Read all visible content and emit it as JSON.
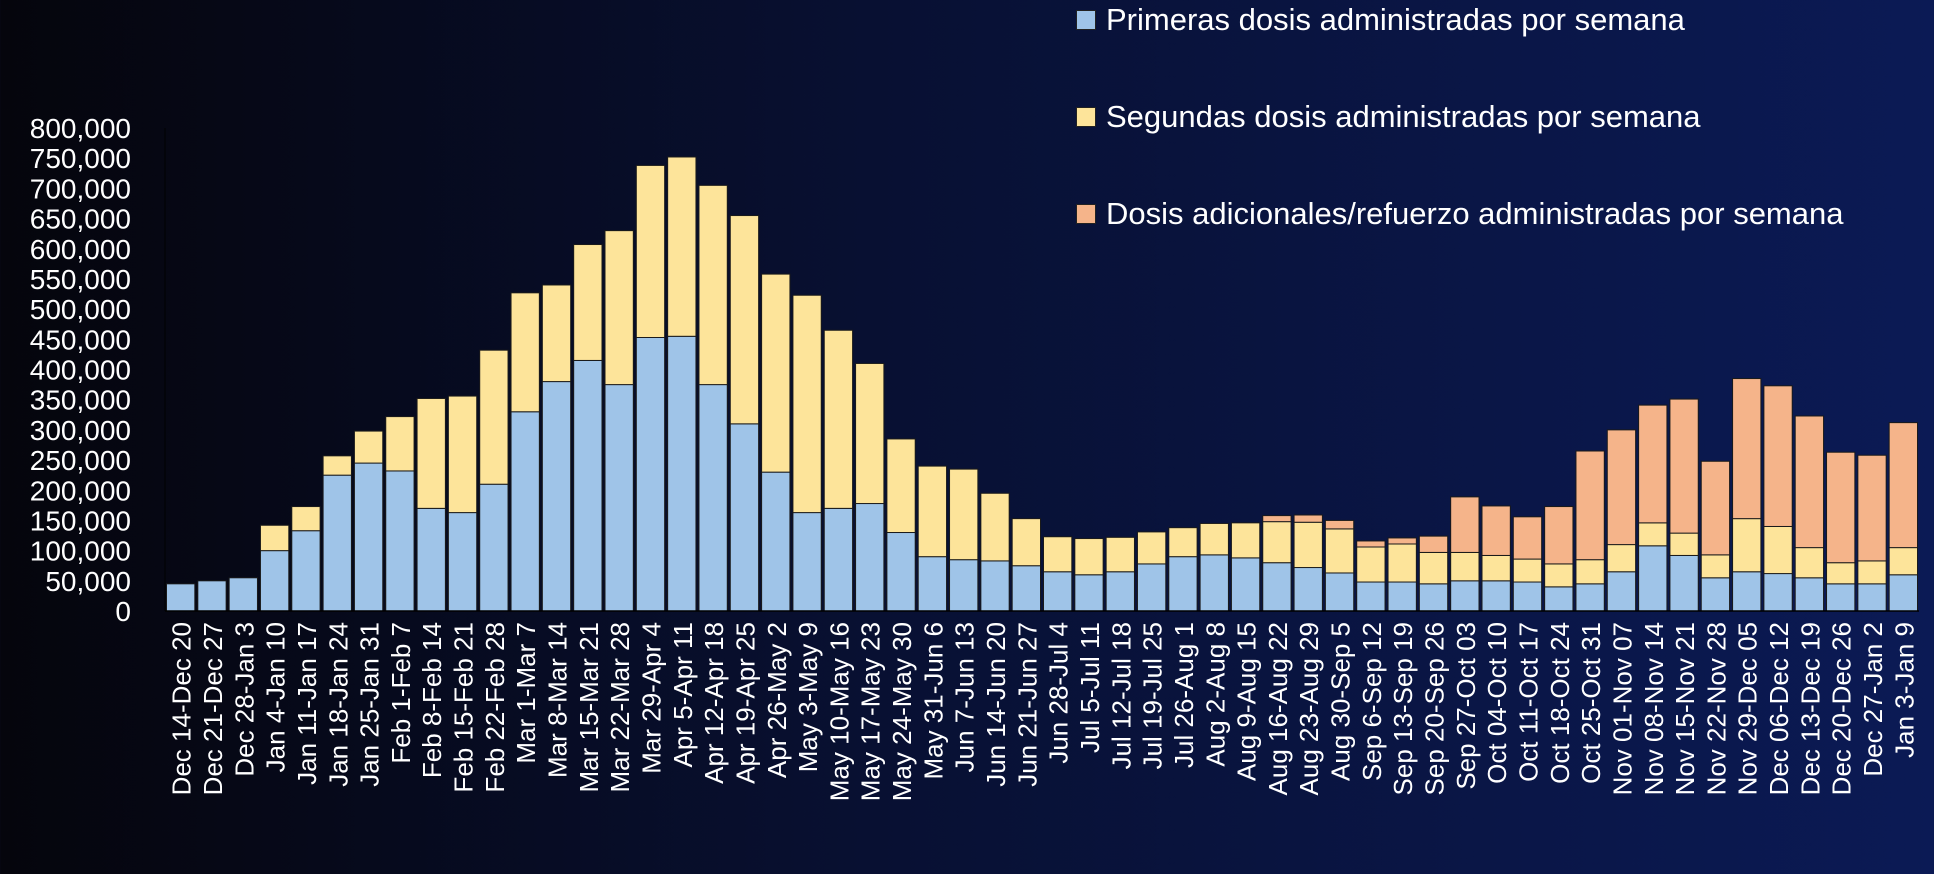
{
  "legend": {
    "items": [
      {
        "label": "Primeras dosis administradas por semana",
        "color": "#9fc4e8"
      },
      {
        "label": "Segundas dosis administradas por semana",
        "color": "#fde49a"
      },
      {
        "label": "Dosis adicionales/refuerzo administradas por semana",
        "color": "#f5b48a"
      }
    ]
  },
  "chart_data": {
    "type": "bar",
    "stacked": true,
    "ylim": [
      0,
      800000
    ],
    "yticks": [
      {
        "value": 0,
        "label": "0"
      },
      {
        "value": 50000,
        "label": "50,000"
      },
      {
        "value": 100000,
        "label": "100,000"
      },
      {
        "value": 150000,
        "label": "150,000"
      },
      {
        "value": 200000,
        "label": "200,000"
      },
      {
        "value": 250000,
        "label": "250,000"
      },
      {
        "value": 300000,
        "label": "300,000"
      },
      {
        "value": 350000,
        "label": "350,000"
      },
      {
        "value": 400000,
        "label": "400,000"
      },
      {
        "value": 450000,
        "label": "450,000"
      },
      {
        "value": 500000,
        "label": "500,000"
      },
      {
        "value": 550000,
        "label": "550,000"
      },
      {
        "value": 600000,
        "label": "600,000"
      },
      {
        "value": 650000,
        "label": "650,000"
      },
      {
        "value": 700000,
        "label": "700,000"
      },
      {
        "value": 750000,
        "label": "750,000"
      },
      {
        "value": 800000,
        "label": "800,000"
      }
    ],
    "categories": [
      "Dec 14-Dec 20",
      "Dec 21-Dec 27",
      "Dec 28-Jan 3",
      "Jan 4-Jan 10",
      "Jan 11-Jan 17",
      "Jan 18-Jan 24",
      "Jan 25-Jan 31",
      "Feb 1-Feb 7",
      "Feb 8-Feb 14",
      "Feb 15-Feb 21",
      "Feb 22-Feb 28",
      "Mar 1-Mar 7",
      "Mar 8-Mar 14",
      "Mar 15-Mar 21",
      "Mar 22-Mar 28",
      "Mar 29-Apr 4",
      "Apr 5-Apr 11",
      "Apr 12-Apr 18",
      "Apr 19-Apr 25",
      "Apr 26-May 2",
      "May 3-May 9",
      "May 10-May 16",
      "May 17-May 23",
      "May 24-May 30",
      "May 31-Jun 6",
      "Jun 7-Jun 13",
      "Jun 14-Jun 20",
      "Jun 21-Jun 27",
      "Jun 28-Jul 4",
      "Jul 5-Jul 11",
      "Jul 12-Jul 18",
      "Jul 19-Jul 25",
      "Jul 26-Aug 1",
      "Aug 2-Aug 8",
      "Aug 9-Aug 15",
      "Aug 16-Aug 22",
      "Aug 23-Aug 29",
      "Aug 30-Sep 5",
      "Sep 6-Sep 12",
      "Sep 13-Sep 19",
      "Sep 20-Sep 26",
      "Sep 27-Oct 03",
      "Oct 04-Oct 10",
      "Oct 11-Oct 17",
      "Oct 18-Oct 24",
      "Oct 25-Oct 31",
      "Nov 01-Nov 07",
      "Nov 08-Nov 14",
      "Nov 15-Nov 21",
      "Nov 22-Nov 28",
      "Nov 29-Dec 05",
      "Dec 06-Dec 12",
      "Dec 13-Dec 19",
      "Dec 20-Dec 26",
      "Dec 27-Jan 2",
      "Jan 3-Jan 9"
    ],
    "series": [
      {
        "name": "Primeras dosis administradas por semana",
        "color": "#9fc4e8",
        "values": [
          45000,
          50000,
          55000,
          100000,
          133000,
          225000,
          245000,
          232000,
          170000,
          163000,
          210000,
          330000,
          380000,
          415000,
          375000,
          453000,
          455000,
          375000,
          310000,
          230000,
          163000,
          170000,
          178000,
          130000,
          90000,
          85000,
          83000,
          75000,
          65000,
          60000,
          65000,
          78000,
          90000,
          93000,
          88000,
          80000,
          72000,
          63000,
          48000,
          48000,
          45000,
          50000,
          50000,
          48000,
          40000,
          45000,
          65000,
          108000,
          92000,
          55000,
          65000,
          62000,
          55000,
          45000,
          45000,
          60000
        ]
      },
      {
        "name": "Segundas dosis administradas por semana",
        "color": "#fde49a",
        "values": [
          0,
          0,
          0,
          42000,
          40000,
          32000,
          53000,
          90000,
          182000,
          193000,
          222000,
          197000,
          160000,
          192000,
          255000,
          285000,
          297000,
          330000,
          345000,
          328000,
          360000,
          295000,
          232000,
          155000,
          150000,
          150000,
          112000,
          78000,
          58000,
          60000,
          57000,
          53000,
          48000,
          52000,
          58000,
          68000,
          75000,
          73000,
          58000,
          63000,
          52000,
          47000,
          42000,
          38000,
          38000,
          40000,
          45000,
          38000,
          37000,
          38000,
          88000,
          78000,
          50000,
          35000,
          38000,
          45000
        ]
      },
      {
        "name": "Dosis adicionales/refuerzo administradas por semana",
        "color": "#f5b48a",
        "values": [
          0,
          0,
          0,
          0,
          0,
          0,
          0,
          0,
          0,
          0,
          0,
          0,
          0,
          0,
          0,
          0,
          0,
          0,
          0,
          0,
          0,
          0,
          0,
          0,
          0,
          0,
          0,
          0,
          0,
          0,
          0,
          0,
          0,
          0,
          0,
          10000,
          12000,
          14000,
          10000,
          10000,
          27000,
          92000,
          82000,
          70000,
          95000,
          180000,
          190000,
          195000,
          222000,
          155000,
          232000,
          233000,
          218000,
          183000,
          175000,
          207000
        ]
      }
    ]
  }
}
